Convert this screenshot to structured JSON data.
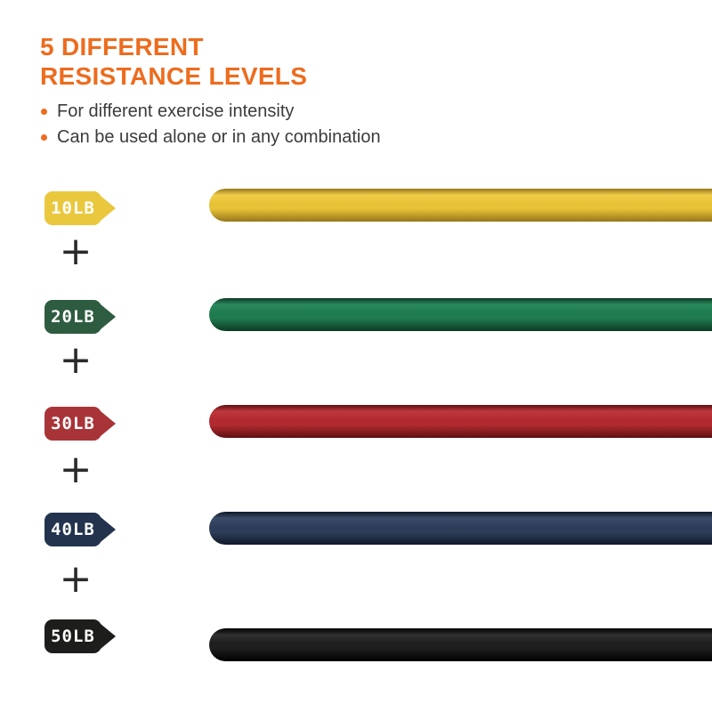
{
  "header": {
    "title_line1": "5 DIFFERENT",
    "title_line2": "RESISTANCE LEVELS",
    "bullets": [
      "For different exercise intensity",
      "Can be used alone or in any combination"
    ]
  },
  "colors": {
    "accent_orange": "#ED6C1E",
    "body_text": "#3B3B3B",
    "plus_gray": "#2A2A2A",
    "background": "#FFFFFF",
    "tag_text": "#FFFFFF"
  },
  "icons": {
    "plus": "+"
  },
  "bands": [
    {
      "label": "10LB",
      "tag_color": "#EAC83E",
      "band_main": "#E7C136",
      "band_light": "#F2CE49",
      "band_dark": "#96771D"
    },
    {
      "label": "20LB",
      "tag_color": "#2E5C40",
      "band_main": "#1F7B50",
      "band_light": "#2A8A5D",
      "band_dark": "#0C3A24"
    },
    {
      "label": "30LB",
      "tag_color": "#A93438",
      "band_main": "#B02A2F",
      "band_light": "#BE373C",
      "band_dark": "#5E1013"
    },
    {
      "label": "40LB",
      "tag_color": "#23334E",
      "band_main": "#2E3E5A",
      "band_light": "#3B4C69",
      "band_dark": "#0F1828"
    },
    {
      "label": "50LB",
      "tag_color": "#1D1D1B",
      "band_main": "#1E1E1E",
      "band_light": "#303030",
      "band_dark": "#000000"
    }
  ]
}
